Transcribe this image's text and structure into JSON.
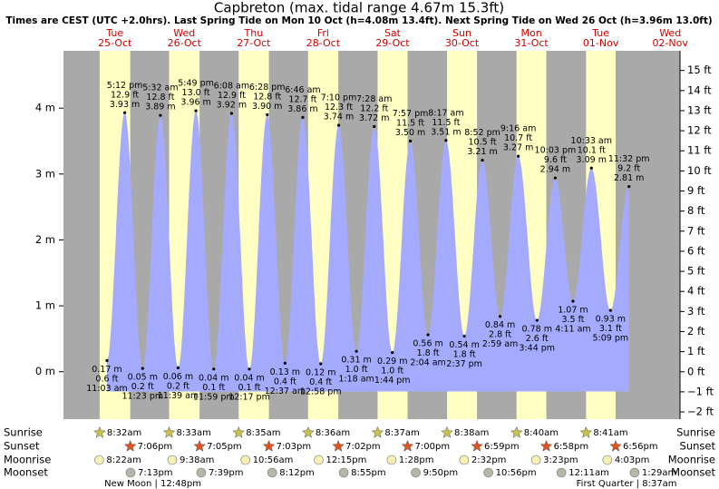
{
  "chart_data": {
    "type": "tide",
    "title": "Capbreton (max. tidal range 4.67m 15.3ft)",
    "subtitle": "Times are CEST (UTC +2.0hrs). Last Spring Tide on Mon 10 Oct (h=4.08m 13.4ft). Next Spring Tide on Wed 26 Oct (h=3.96m 13.0ft)",
    "ylim": [
      -0.72,
      4.87
    ],
    "yticks": [
      {
        "value": 0,
        "label": "0 m"
      },
      {
        "value": 1,
        "label": "1 m"
      },
      {
        "value": 2,
        "label": "2 m"
      },
      {
        "value": 3,
        "label": "3 m"
      },
      {
        "value": 4,
        "label": "4 m"
      }
    ],
    "y2lim": [
      -2.36,
      15.98
    ],
    "y2ticks": [
      {
        "value": -2,
        "label": "−2 ft"
      },
      {
        "value": -1,
        "label": "−1 ft"
      },
      {
        "value": 0,
        "label": "0 ft"
      },
      {
        "value": 1,
        "label": "1 ft"
      },
      {
        "value": 2,
        "label": "2 ft"
      },
      {
        "value": 3,
        "label": "3 ft"
      },
      {
        "value": 4,
        "label": "4 ft"
      },
      {
        "value": 5,
        "label": "5 ft"
      },
      {
        "value": 6,
        "label": "6 ft"
      },
      {
        "value": 7,
        "label": "7 ft"
      },
      {
        "value": 8,
        "label": "8 ft"
      },
      {
        "value": 9,
        "label": "9 ft"
      },
      {
        "value": 10,
        "label": "10 ft"
      },
      {
        "value": 11,
        "label": "11 ft"
      },
      {
        "value": 12,
        "label": "12 ft"
      },
      {
        "value": 13,
        "label": "13 ft"
      },
      {
        "value": 14,
        "label": "14 ft"
      },
      {
        "value": 15,
        "label": "15 ft"
      }
    ],
    "row_labels": [
      "Sunrise",
      "Sunset",
      "Moonrise",
      "Moonset"
    ],
    "color": "#a4abff",
    "days": [
      {
        "weekday": "Tue",
        "date": "25-Oct",
        "sunrise": "8:32am",
        "sunset": "7:06pm",
        "moonrise": "8:22am",
        "moonset": "7:13pm",
        "moon_phase": "New Moon | 12:48pm",
        "tides": [
          {
            "time": "11:03 am",
            "height": 0.17,
            "height_label": "0.17 m",
            "feet": 0.6,
            "feet_label": "0.6 ft"
          },
          {
            "time": "5:12 pm",
            "height": 3.93,
            "height_label": "3.93 m",
            "feet": 12.9,
            "feet_label": "12.9 ft"
          },
          {
            "time": "11:23 pm",
            "height": 0.05,
            "height_label": "0.05 m",
            "feet": 0.2,
            "feet_label": "0.2 ft"
          }
        ]
      },
      {
        "weekday": "Wed",
        "date": "26-Oct",
        "sunrise": "8:33am",
        "sunset": "7:05pm",
        "moonrise": "9:38am",
        "moonset": "7:39pm",
        "tides": [
          {
            "time": "5:32 am",
            "height": 3.89,
            "height_label": "3.89 m",
            "feet": 12.8,
            "feet_label": "12.8 ft"
          },
          {
            "time": "11:39 am",
            "height": 0.06,
            "height_label": "0.06 m",
            "feet": 0.2,
            "feet_label": "0.2 ft"
          },
          {
            "time": "5:49 pm",
            "height": 3.96,
            "height_label": "3.96 m",
            "feet": 13.0,
            "feet_label": "13.0 ft"
          },
          {
            "time": "11:59 pm",
            "height": 0.04,
            "height_label": "0.04 m",
            "feet": 0.1,
            "feet_label": "0.1 ft"
          }
        ]
      },
      {
        "weekday": "Thu",
        "date": "27-Oct",
        "sunrise": "8:35am",
        "sunset": "7:03pm",
        "moonrise": "10:56am",
        "moonset": "8:12pm",
        "tides": [
          {
            "time": "6:08 am",
            "height": 3.92,
            "height_label": "3.92 m",
            "feet": 12.9,
            "feet_label": "12.9 ft"
          },
          {
            "time": "12:17 pm",
            "height": 0.04,
            "height_label": "0.04 m",
            "feet": 0.1,
            "feet_label": "0.1 ft"
          },
          {
            "time": "6:28 pm",
            "height": 3.9,
            "height_label": "3.90 m",
            "feet": 12.8,
            "feet_label": "12.8 ft"
          }
        ]
      },
      {
        "weekday": "Fri",
        "date": "28-Oct",
        "sunrise": "8:36am",
        "sunset": "7:02pm",
        "moonrise": "12:15pm",
        "moonset": "8:55pm",
        "tides": [
          {
            "time": "12:37 am",
            "height": 0.13,
            "height_label": "0.13 m",
            "feet": 0.4,
            "feet_label": "0.4 ft"
          },
          {
            "time": "6:46 am",
            "height": 3.86,
            "height_label": "3.86 m",
            "feet": 12.7,
            "feet_label": "12.7 ft"
          },
          {
            "time": "12:58 pm",
            "height": 0.12,
            "height_label": "0.12 m",
            "feet": 0.4,
            "feet_label": "0.4 ft"
          },
          {
            "time": "7:10 pm",
            "height": 3.74,
            "height_label": "3.74 m",
            "feet": 12.3,
            "feet_label": "12.3 ft"
          }
        ]
      },
      {
        "weekday": "Sat",
        "date": "29-Oct",
        "sunrise": "8:37am",
        "sunset": "7:00pm",
        "moonrise": "1:28pm",
        "moonset": "9:50pm",
        "tides": [
          {
            "time": "1:18 am",
            "height": 0.31,
            "height_label": "0.31 m",
            "feet": 1.0,
            "feet_label": "1.0 ft"
          },
          {
            "time": "7:28 am",
            "height": 3.72,
            "height_label": "3.72 m",
            "feet": 12.2,
            "feet_label": "12.2 ft"
          },
          {
            "time": "1:44 pm",
            "height": 0.29,
            "height_label": "0.29 m",
            "feet": 1.0,
            "feet_label": "1.0 ft"
          },
          {
            "time": "7:57 pm",
            "height": 3.5,
            "height_label": "3.50 m",
            "feet": 11.5,
            "feet_label": "11.5 ft"
          }
        ]
      },
      {
        "weekday": "Sun",
        "date": "30-Oct",
        "sunrise": "8:38am",
        "sunset": "6:59pm",
        "moonrise": "2:32pm",
        "moonset": "10:56pm",
        "tides": [
          {
            "time": "2:04 am",
            "height": 0.56,
            "height_label": "0.56 m",
            "feet": 1.8,
            "feet_label": "1.8 ft"
          },
          {
            "time": "8:17 am",
            "height": 3.51,
            "height_label": "3.51 m",
            "feet": 11.5,
            "feet_label": "11.5 ft"
          },
          {
            "time": "2:37 pm",
            "height": 0.54,
            "height_label": "0.54 m",
            "feet": 1.8,
            "feet_label": "1.8 ft"
          },
          {
            "time": "8:52 pm",
            "height": 3.21,
            "height_label": "3.21 m",
            "feet": 10.5,
            "feet_label": "10.5 ft"
          }
        ]
      },
      {
        "weekday": "Mon",
        "date": "31-Oct",
        "sunrise": "8:40am",
        "sunset": "6:58pm",
        "moonrise": "3:23pm",
        "tides": [
          {
            "time": "2:59 am",
            "height": 0.84,
            "height_label": "0.84 m",
            "feet": 2.8,
            "feet_label": "2.8 ft"
          },
          {
            "time": "9:16 am",
            "height": 3.27,
            "height_label": "3.27 m",
            "feet": 10.7,
            "feet_label": "10.7 ft"
          },
          {
            "time": "3:44 pm",
            "height": 0.78,
            "height_label": "0.78 m",
            "feet": 2.6,
            "feet_label": "2.6 ft"
          },
          {
            "time": "10:03 pm",
            "height": 2.94,
            "height_label": "2.94 m",
            "feet": 9.6,
            "feet_label": "9.6 ft"
          }
        ]
      },
      {
        "weekday": "Tue",
        "date": "01-Nov",
        "sunrise": "8:41am",
        "sunset": "6:56pm",
        "moonrise": "4:03pm",
        "moonset": "12:11am",
        "moon_phase": "First Quarter | 8:37am",
        "tides": [
          {
            "time": "4:11 am",
            "height": 1.07,
            "height_label": "1.07 m",
            "feet": 3.5,
            "feet_label": "3.5 ft"
          },
          {
            "time": "10:33 am",
            "height": 3.09,
            "height_label": "3.09 m",
            "feet": 10.1,
            "feet_label": "10.1 ft"
          },
          {
            "time": "5:09 pm",
            "height": 0.93,
            "height_label": "0.93 m",
            "feet": 3.1,
            "feet_label": "3.1 ft"
          },
          {
            "time": "11:32 pm",
            "height": 2.81,
            "height_label": "2.81 m",
            "feet": 9.2,
            "feet_label": "9.2 ft"
          }
        ]
      },
      {
        "weekday": "Wed",
        "date": "02-Nov",
        "moonset": "1:29am",
        "tides": []
      }
    ]
  }
}
